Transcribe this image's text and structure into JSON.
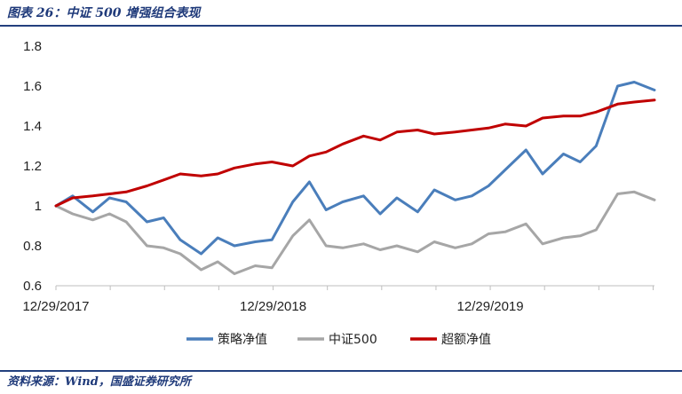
{
  "header": {
    "title": "图表 26：中证 500 增强组合表现"
  },
  "footer": {
    "source": "资料来源：Wind，国盛证券研究所"
  },
  "chart_data": {
    "type": "line",
    "title": "",
    "xlabel": "",
    "ylabel": "",
    "ylim": [
      0.6,
      1.8
    ],
    "yticks": [
      "0.6",
      "0.8",
      "1",
      "1.2",
      "1.4",
      "1.6",
      "1.8"
    ],
    "xticks": [
      "12/29/2017",
      "12/29/2018",
      "12/29/2019"
    ],
    "grid": false,
    "legend_position": "bottom",
    "x": [
      "2017-12-29",
      "2018-01-26",
      "2018-03-01",
      "2018-03-29",
      "2018-04-26",
      "2018-05-31",
      "2018-06-28",
      "2018-07-26",
      "2018-08-30",
      "2018-09-27",
      "2018-10-25",
      "2018-11-29",
      "2018-12-27",
      "2019-01-31",
      "2019-02-28",
      "2019-03-28",
      "2019-04-25",
      "2019-05-30",
      "2019-06-27",
      "2019-07-25",
      "2019-08-29",
      "2019-09-26",
      "2019-10-31",
      "2019-11-28",
      "2019-12-26",
      "2020-01-23",
      "2020-02-27",
      "2020-03-26",
      "2020-04-30",
      "2020-05-28",
      "2020-06-24",
      "2020-07-30",
      "2020-08-27",
      "2020-09-30"
    ],
    "series": [
      {
        "name": "策略净值",
        "color": "#4a7ebb",
        "values": [
          1.0,
          1.05,
          0.97,
          1.04,
          1.02,
          0.92,
          0.94,
          0.83,
          0.76,
          0.84,
          0.8,
          0.82,
          0.83,
          1.02,
          1.12,
          0.98,
          1.02,
          1.05,
          0.96,
          1.04,
          0.97,
          1.08,
          1.03,
          1.05,
          1.1,
          1.18,
          1.28,
          1.16,
          1.26,
          1.22,
          1.3,
          1.6,
          1.62,
          1.58
        ]
      },
      {
        "name": "中证500",
        "color": "#a6a6a6",
        "values": [
          1.0,
          0.96,
          0.93,
          0.96,
          0.92,
          0.8,
          0.79,
          0.76,
          0.68,
          0.72,
          0.66,
          0.7,
          0.69,
          0.85,
          0.93,
          0.8,
          0.79,
          0.81,
          0.78,
          0.8,
          0.77,
          0.82,
          0.79,
          0.81,
          0.86,
          0.87,
          0.91,
          0.81,
          0.84,
          0.85,
          0.88,
          1.06,
          1.07,
          1.03
        ]
      },
      {
        "name": "超额净值",
        "color": "#c00000",
        "values": [
          1.0,
          1.04,
          1.05,
          1.06,
          1.07,
          1.1,
          1.13,
          1.16,
          1.15,
          1.16,
          1.19,
          1.21,
          1.22,
          1.2,
          1.25,
          1.27,
          1.31,
          1.35,
          1.33,
          1.37,
          1.38,
          1.36,
          1.37,
          1.38,
          1.39,
          1.41,
          1.4,
          1.44,
          1.45,
          1.45,
          1.47,
          1.51,
          1.52,
          1.53
        ]
      }
    ]
  }
}
